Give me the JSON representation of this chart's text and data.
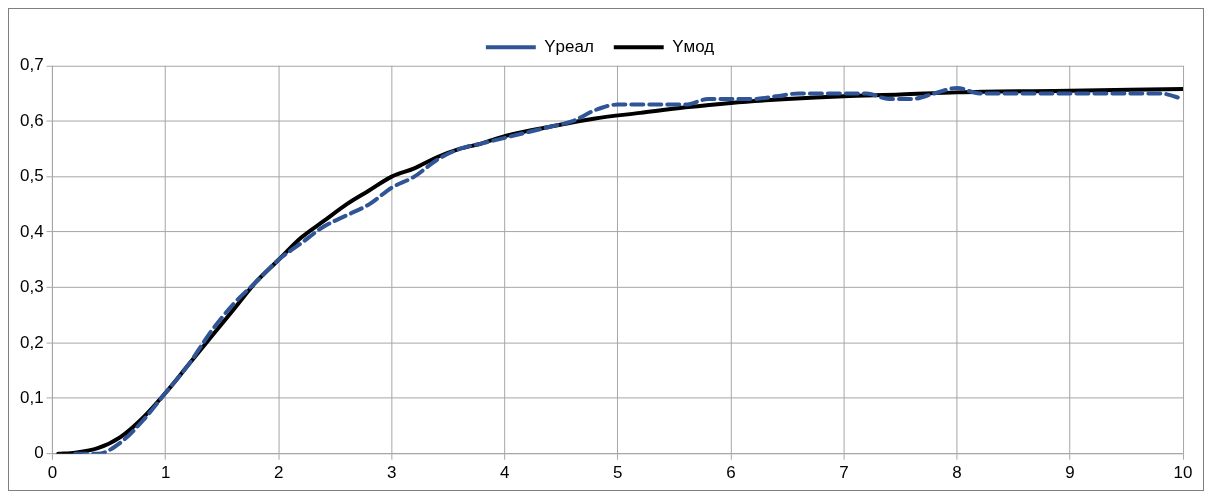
{
  "chart_data": {
    "type": "line",
    "xlim": [
      0,
      10
    ],
    "xticks": [
      0,
      1,
      2,
      3,
      4,
      5,
      6,
      7,
      8,
      9,
      10
    ],
    "ylim": [
      0,
      0.7
    ],
    "yticks": [
      0,
      {
        "value": 0.1,
        "label": "0,1"
      },
      {
        "value": 0.2,
        "label": "0,2"
      },
      {
        "value": 0.3,
        "label": "0,3"
      },
      {
        "value": 0.4,
        "label": "0,4"
      },
      {
        "value": 0.5,
        "label": "0,5"
      },
      {
        "value": 0.6,
        "label": "0,6"
      },
      {
        "value": 0.7,
        "label": "0,7"
      }
    ],
    "grid": true,
    "legend": "top",
    "marker": "none",
    "series": [
      {
        "name": "Yреал",
        "color": "#2f5597",
        "line_style": "dashed",
        "x": [
          0.2,
          0.4,
          0.6,
          0.8,
          1.0,
          1.2,
          1.4,
          1.6,
          1.8,
          2.0,
          2.2,
          2.4,
          2.6,
          2.8,
          3.0,
          3.2,
          3.4,
          3.6,
          3.8,
          4.0,
          4.2,
          4.4,
          4.6,
          4.8,
          5.0,
          5.2,
          5.4,
          5.6,
          5.8,
          6.0,
          6.2,
          6.4,
          6.6,
          6.8,
          7.0,
          7.2,
          7.4,
          7.6,
          7.8,
          8.0,
          8.2,
          8.4,
          8.6,
          8.8,
          9.0,
          9.2,
          9.4,
          9.6,
          9.8,
          10.0
        ],
        "values": [
          0,
          0,
          0.02,
          0.06,
          0.11,
          0.16,
          0.22,
          0.27,
          0.31,
          0.35,
          0.38,
          0.41,
          0.43,
          0.45,
          0.48,
          0.5,
          0.53,
          0.55,
          0.56,
          0.57,
          0.58,
          0.59,
          0.6,
          0.62,
          0.63,
          0.63,
          0.63,
          0.63,
          0.64,
          0.64,
          0.64,
          0.645,
          0.65,
          0.65,
          0.65,
          0.65,
          0.64,
          0.64,
          0.65,
          0.66,
          0.65,
          0.65,
          0.65,
          0.65,
          0.65,
          0.65,
          0.65,
          0.65,
          0.65,
          0.64
        ]
      },
      {
        "name": "Yмод",
        "color": "#000000",
        "line_style": "solid",
        "x": [
          0.05,
          0.2,
          0.4,
          0.6,
          0.8,
          1.0,
          1.2,
          1.4,
          1.6,
          1.8,
          2.0,
          2.2,
          2.4,
          2.6,
          2.8,
          3.0,
          3.2,
          3.4,
          3.6,
          3.8,
          4.0,
          4.4,
          4.8,
          5.2,
          5.6,
          6.0,
          6.5,
          7.0,
          7.5,
          8.0,
          9.0,
          10.0
        ],
        "values": [
          0,
          0.002,
          0.01,
          0.03,
          0.065,
          0.11,
          0.16,
          0.21,
          0.26,
          0.31,
          0.35,
          0.39,
          0.42,
          0.45,
          0.475,
          0.5,
          0.515,
          0.535,
          0.55,
          0.56,
          0.573,
          0.59,
          0.605,
          0.615,
          0.625,
          0.633,
          0.64,
          0.645,
          0.648,
          0.652,
          0.655,
          0.658
        ]
      }
    ]
  }
}
